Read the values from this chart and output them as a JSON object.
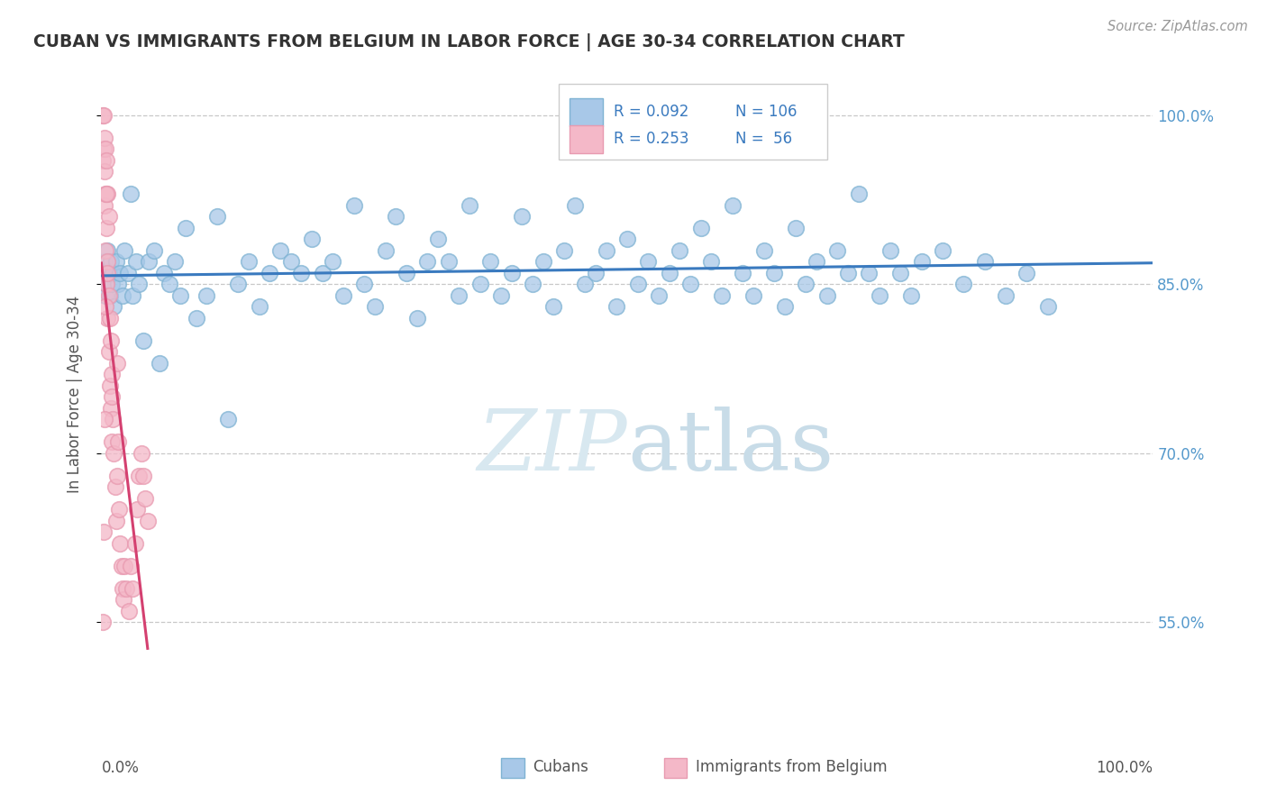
{
  "title": "CUBAN VS IMMIGRANTS FROM BELGIUM IN LABOR FORCE | AGE 30-34 CORRELATION CHART",
  "source_text": "Source: ZipAtlas.com",
  "ylabel": "In Labor Force | Age 30-34",
  "xlim": [
    0.0,
    1.0
  ],
  "ylim": [
    0.46,
    1.045
  ],
  "yticks": [
    0.55,
    0.7,
    0.85,
    1.0
  ],
  "right_ytick_labels": [
    "55.0%",
    "70.0%",
    "85.0%",
    "100.0%"
  ],
  "legend_r1": "R = 0.092",
  "legend_n1": "N = 106",
  "legend_r2": "R = 0.253",
  "legend_n2": "N =  56",
  "blue_fill_color": "#a8c8e8",
  "blue_edge_color": "#7fb3d3",
  "pink_fill_color": "#f4b8c8",
  "pink_edge_color": "#e89ab0",
  "blue_line_color": "#3a7abf",
  "pink_line_color": "#d44070",
  "title_color": "#333333",
  "axis_label_color": "#555555",
  "tick_color": "#5599cc",
  "watermark_color": "#d8e8f0",
  "grid_color": "#c8c8c8",
  "blue_scatter_x": [
    0.002,
    0.003,
    0.004,
    0.005,
    0.006,
    0.007,
    0.008,
    0.009,
    0.01,
    0.011,
    0.012,
    0.014,
    0.016,
    0.018,
    0.02,
    0.022,
    0.025,
    0.028,
    0.03,
    0.033,
    0.036,
    0.04,
    0.045,
    0.05,
    0.055,
    0.06,
    0.065,
    0.07,
    0.075,
    0.08,
    0.09,
    0.1,
    0.11,
    0.12,
    0.13,
    0.14,
    0.15,
    0.16,
    0.17,
    0.18,
    0.19,
    0.2,
    0.21,
    0.22,
    0.23,
    0.24,
    0.25,
    0.26,
    0.27,
    0.28,
    0.29,
    0.3,
    0.31,
    0.32,
    0.33,
    0.34,
    0.35,
    0.36,
    0.37,
    0.38,
    0.39,
    0.4,
    0.41,
    0.42,
    0.43,
    0.44,
    0.45,
    0.46,
    0.47,
    0.48,
    0.49,
    0.5,
    0.51,
    0.52,
    0.53,
    0.54,
    0.55,
    0.56,
    0.57,
    0.58,
    0.59,
    0.6,
    0.61,
    0.62,
    0.63,
    0.64,
    0.65,
    0.66,
    0.67,
    0.68,
    0.69,
    0.7,
    0.71,
    0.72,
    0.73,
    0.74,
    0.75,
    0.76,
    0.77,
    0.78,
    0.8,
    0.82,
    0.84,
    0.86,
    0.88,
    0.9
  ],
  "blue_scatter_y": [
    0.86,
    0.87,
    0.84,
    0.85,
    0.88,
    0.86,
    0.84,
    0.87,
    0.85,
    0.86,
    0.83,
    0.87,
    0.85,
    0.86,
    0.84,
    0.88,
    0.86,
    0.93,
    0.84,
    0.87,
    0.85,
    0.8,
    0.87,
    0.88,
    0.78,
    0.86,
    0.85,
    0.87,
    0.84,
    0.9,
    0.82,
    0.84,
    0.91,
    0.73,
    0.85,
    0.87,
    0.83,
    0.86,
    0.88,
    0.87,
    0.86,
    0.89,
    0.86,
    0.87,
    0.84,
    0.92,
    0.85,
    0.83,
    0.88,
    0.91,
    0.86,
    0.82,
    0.87,
    0.89,
    0.87,
    0.84,
    0.92,
    0.85,
    0.87,
    0.84,
    0.86,
    0.91,
    0.85,
    0.87,
    0.83,
    0.88,
    0.92,
    0.85,
    0.86,
    0.88,
    0.83,
    0.89,
    0.85,
    0.87,
    0.84,
    0.86,
    0.88,
    0.85,
    0.9,
    0.87,
    0.84,
    0.92,
    0.86,
    0.84,
    0.88,
    0.86,
    0.83,
    0.9,
    0.85,
    0.87,
    0.84,
    0.88,
    0.86,
    0.93,
    0.86,
    0.84,
    0.88,
    0.86,
    0.84,
    0.87,
    0.88,
    0.85,
    0.87,
    0.84,
    0.86,
    0.83
  ],
  "pink_scatter_x": [
    0.001,
    0.001,
    0.002,
    0.002,
    0.003,
    0.003,
    0.003,
    0.004,
    0.004,
    0.004,
    0.005,
    0.005,
    0.005,
    0.006,
    0.006,
    0.006,
    0.007,
    0.007,
    0.007,
    0.008,
    0.008,
    0.009,
    0.009,
    0.01,
    0.01,
    0.011,
    0.012,
    0.013,
    0.014,
    0.015,
    0.016,
    0.017,
    0.018,
    0.019,
    0.02,
    0.021,
    0.022,
    0.024,
    0.026,
    0.028,
    0.03,
    0.032,
    0.034,
    0.036,
    0.038,
    0.04,
    0.042,
    0.044,
    0.001,
    0.002,
    0.003,
    0.004,
    0.005,
    0.006,
    0.01,
    0.015
  ],
  "pink_scatter_y": [
    0.96,
    1.0,
    0.97,
    1.0,
    0.92,
    0.95,
    0.98,
    0.88,
    0.93,
    0.97,
    0.85,
    0.9,
    0.96,
    0.82,
    0.87,
    0.93,
    0.79,
    0.84,
    0.91,
    0.76,
    0.82,
    0.74,
    0.8,
    0.71,
    0.77,
    0.73,
    0.7,
    0.67,
    0.64,
    0.68,
    0.71,
    0.65,
    0.62,
    0.6,
    0.58,
    0.57,
    0.6,
    0.58,
    0.56,
    0.6,
    0.58,
    0.62,
    0.65,
    0.68,
    0.7,
    0.68,
    0.66,
    0.64,
    0.55,
    0.63,
    0.73,
    0.83,
    0.93,
    0.86,
    0.75,
    0.78
  ]
}
